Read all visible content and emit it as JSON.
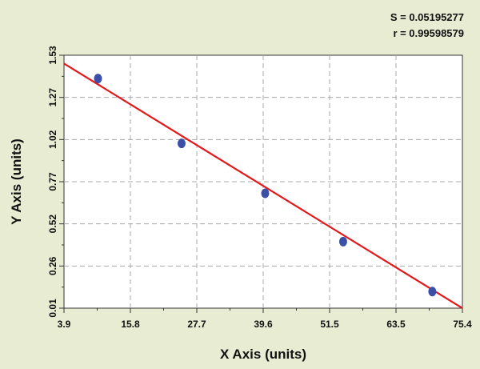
{
  "stats": {
    "s_text": "S = 0.05195277",
    "r_text": "r = 0.99598579"
  },
  "chart_data": {
    "type": "scatter",
    "xlabel": "X Axis (units)",
    "ylabel": "Y Axis (units)",
    "x_ticks": [
      "3.9",
      "15.8",
      "27.7",
      "39.6",
      "51.5",
      "63.5",
      "75.4"
    ],
    "y_ticks": [
      "0.01",
      "0.26",
      "0.52",
      "0.77",
      "1.02",
      "1.27",
      "1.53"
    ],
    "xlim": [
      3.9,
      75.4
    ],
    "ylim": [
      0.01,
      1.53
    ],
    "grid": true,
    "series": [
      {
        "points": [
          {
            "x": 10,
            "y": 1.39
          },
          {
            "x": 25,
            "y": 1.0
          },
          {
            "x": 40,
            "y": 0.7
          },
          {
            "x": 54,
            "y": 0.41
          },
          {
            "x": 70,
            "y": 0.11
          }
        ]
      }
    ],
    "fit_line": {
      "x": [
        3.9,
        75.4
      ],
      "y": [
        1.48,
        0.01
      ]
    },
    "colors": {
      "background": "#e8ecd2",
      "plot_area": "#ffffff",
      "points": "#3b4fa8",
      "fit_line": "#e31a1c",
      "grid": "#a8a8a8"
    }
  }
}
